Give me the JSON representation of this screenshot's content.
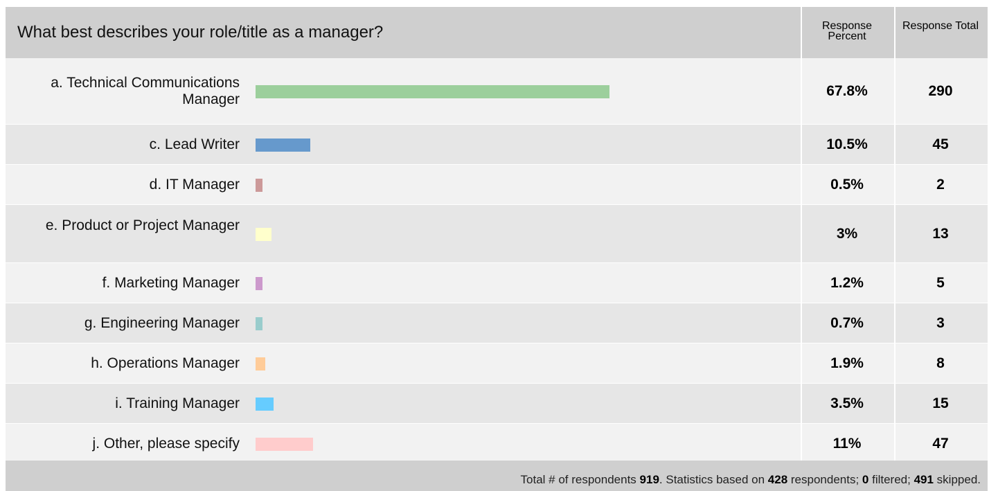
{
  "question": "What best describes your role/title as a manager?",
  "columns": {
    "percent": "Response Percent",
    "total": "Response Total"
  },
  "chart_data": {
    "type": "bar",
    "orientation": "horizontal",
    "categories": [
      "a. Technical Communications Manager",
      "c. Lead Writer",
      "d. IT Manager",
      "e. Product or Project Manager",
      "f. Marketing Manager",
      "g. Engineering Manager",
      "h. Operations Manager",
      "i. Training Manager",
      "j. Other, please specify"
    ],
    "values": [
      67.8,
      10.5,
      0.5,
      3,
      1.2,
      0.7,
      1.9,
      3.5,
      11
    ],
    "percent_labels": [
      "67.8%",
      "10.5%",
      "0.5%",
      "3%",
      "1.2%",
      "0.7%",
      "1.9%",
      "3.5%",
      "11%"
    ],
    "totals": [
      290,
      45,
      2,
      13,
      5,
      3,
      8,
      15,
      47
    ],
    "colors": [
      "#9ccf9c",
      "#6699cc",
      "#cc9999",
      "#ffffcc",
      "#cc99cc",
      "#99cccc",
      "#ffcc99",
      "#66ccff",
      "#ffcccc"
    ]
  },
  "footer": {
    "t1": "Total # of respondents ",
    "n1": "919",
    "t2": ". Statistics based on ",
    "n2": "428",
    "t3": " respondents; ",
    "n3": "0",
    "t4": " filtered; ",
    "n4": "491",
    "t5": " skipped."
  }
}
